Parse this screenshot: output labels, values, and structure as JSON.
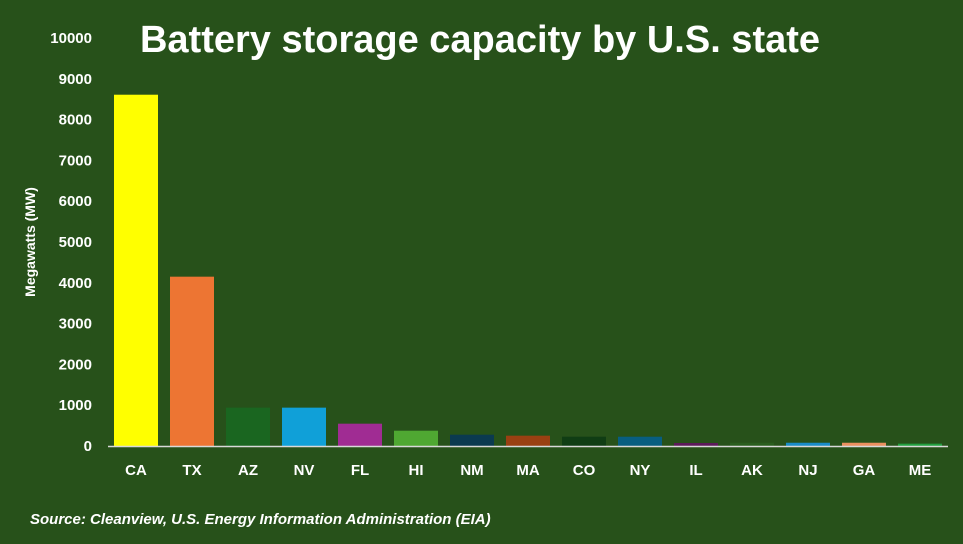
{
  "chart_data": {
    "type": "bar",
    "title": "Battery storage capacity by U.S. state",
    "ylabel": "Megawatts (MW)",
    "xlabel": "",
    "source": "Source: Cleanview, U.S. Energy Information Administration (EIA)",
    "ylim": [
      0,
      10000
    ],
    "yticks": [
      0,
      1000,
      2000,
      3000,
      4000,
      5000,
      6000,
      7000,
      8000,
      9000,
      10000
    ],
    "grid": false,
    "categories": [
      "CA",
      "TX",
      "AZ",
      "NV",
      "FL",
      "HI",
      "NM",
      "MA",
      "CO",
      "NY",
      "IL",
      "AK",
      "NJ",
      "GA",
      "ME"
    ],
    "values": [
      8610,
      4150,
      940,
      940,
      547,
      375,
      277,
      253,
      228,
      228,
      74,
      80,
      80,
      80,
      57
    ],
    "colors": [
      "#ffff00",
      "#ed7533",
      "#1a6620",
      "#10a0d8",
      "#a02c93",
      "#4fa832",
      "#0b3a50",
      "#9a4012",
      "#103d14",
      "#085e80",
      "#5c1a5a",
      "#2a5e1e",
      "#1a8cc8",
      "#eb9060",
      "#22a040"
    ],
    "background": "#27511a"
  }
}
